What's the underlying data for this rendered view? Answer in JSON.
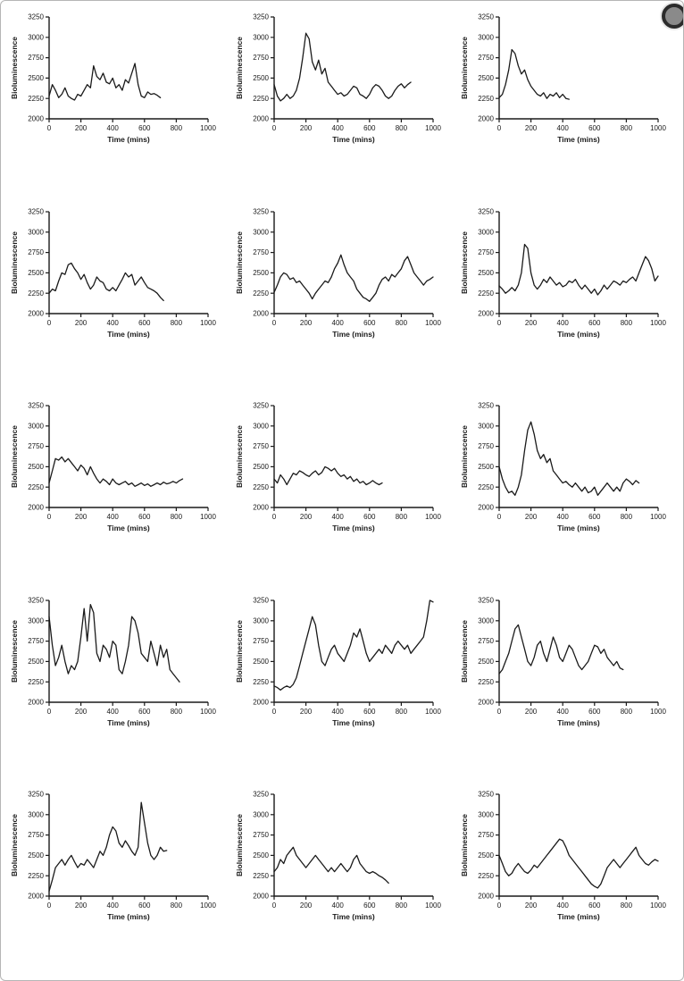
{
  "page": {
    "background": "#ffffff",
    "line_color": "#1a1a1a"
  },
  "chart_data": [
    {
      "type": "line",
      "title": "",
      "xlabel": "Time (mins)",
      "ylabel": "Bioluminescence",
      "xlim": [
        0,
        1000
      ],
      "ylim": [
        2000,
        3250
      ],
      "xticks": [
        0,
        200,
        400,
        600,
        800,
        1000
      ],
      "yticks": [
        2000,
        2250,
        2500,
        2750,
        3000,
        3250
      ],
      "x0": 0,
      "dx": 20,
      "values": [
        2280,
        2420,
        2350,
        2260,
        2300,
        2380,
        2280,
        2250,
        2230,
        2300,
        2280,
        2350,
        2420,
        2380,
        2650,
        2520,
        2480,
        2560,
        2450,
        2430,
        2500,
        2380,
        2420,
        2350,
        2480,
        2440,
        2560,
        2680,
        2420,
        2280,
        2260,
        2330,
        2300,
        2310,
        2290,
        2260
      ]
    },
    {
      "type": "line",
      "title": "",
      "xlabel": "Time (mins)",
      "ylabel": "Bioluminescence",
      "xlim": [
        0,
        1000
      ],
      "ylim": [
        2000,
        3250
      ],
      "xticks": [
        0,
        200,
        400,
        600,
        800,
        1000
      ],
      "yticks": [
        2000,
        2250,
        2500,
        2750,
        3000,
        3250
      ],
      "x0": 0,
      "dx": 20,
      "values": [
        2420,
        2280,
        2220,
        2250,
        2300,
        2250,
        2280,
        2350,
        2500,
        2750,
        3050,
        2980,
        2700,
        2600,
        2720,
        2550,
        2620,
        2450,
        2400,
        2350,
        2300,
        2320,
        2280,
        2300,
        2350,
        2400,
        2380,
        2300,
        2280,
        2250,
        2300,
        2380,
        2420,
        2400,
        2350,
        2280,
        2250,
        2280,
        2350,
        2400,
        2430,
        2380,
        2420,
        2450
      ]
    },
    {
      "type": "line",
      "title": "",
      "xlabel": "Time (mins)",
      "ylabel": "Bioluminescence",
      "xlim": [
        0,
        1000
      ],
      "ylim": [
        2000,
        3250
      ],
      "xticks": [
        0,
        200,
        400,
        600,
        800,
        1000
      ],
      "yticks": [
        2000,
        2250,
        2500,
        2750,
        3000,
        3250
      ],
      "x0": 0,
      "dx": 20,
      "values": [
        2260,
        2300,
        2420,
        2600,
        2850,
        2800,
        2650,
        2550,
        2600,
        2480,
        2400,
        2350,
        2300,
        2280,
        2320,
        2250,
        2300,
        2280,
        2320,
        2260,
        2300,
        2250,
        2240
      ]
    },
    {
      "type": "line",
      "title": "",
      "xlabel": "Time (mins)",
      "ylabel": "Bioluminescence",
      "xlim": [
        0,
        1000
      ],
      "ylim": [
        2000,
        3250
      ],
      "xticks": [
        0,
        200,
        400,
        600,
        800,
        1000
      ],
      "yticks": [
        2000,
        2250,
        2500,
        2750,
        3000,
        3250
      ],
      "x0": 0,
      "dx": 20,
      "values": [
        2250,
        2300,
        2280,
        2400,
        2500,
        2480,
        2600,
        2620,
        2550,
        2500,
        2420,
        2480,
        2380,
        2300,
        2350,
        2450,
        2400,
        2380,
        2300,
        2280,
        2320,
        2280,
        2350,
        2420,
        2500,
        2450,
        2480,
        2350,
        2400,
        2450,
        2380,
        2320,
        2300,
        2280,
        2250,
        2200,
        2160
      ]
    },
    {
      "type": "line",
      "title": "",
      "xlabel": "Time (mins)",
      "ylabel": "Bioluminescence",
      "xlim": [
        0,
        1000
      ],
      "ylim": [
        2000,
        3250
      ],
      "xticks": [
        0,
        200,
        400,
        600,
        800,
        1000
      ],
      "yticks": [
        2000,
        2250,
        2500,
        2750,
        3000,
        3250
      ],
      "x0": 0,
      "dx": 20,
      "values": [
        2260,
        2350,
        2450,
        2500,
        2480,
        2420,
        2440,
        2380,
        2400,
        2350,
        2300,
        2250,
        2180,
        2250,
        2300,
        2350,
        2400,
        2380,
        2450,
        2550,
        2620,
        2720,
        2600,
        2500,
        2450,
        2400,
        2300,
        2250,
        2200,
        2180,
        2150,
        2200,
        2250,
        2350,
        2420,
        2450,
        2400,
        2480,
        2450,
        2500,
        2550,
        2650,
        2700,
        2600,
        2500,
        2450,
        2400,
        2350,
        2400,
        2420,
        2450
      ]
    },
    {
      "type": "line",
      "title": "",
      "xlabel": "Time (mins)",
      "ylabel": "Bioluminescence",
      "xlim": [
        0,
        1000
      ],
      "ylim": [
        2000,
        3250
      ],
      "xticks": [
        0,
        200,
        400,
        600,
        800,
        1000
      ],
      "yticks": [
        2000,
        2250,
        2500,
        2750,
        3000,
        3250
      ],
      "x0": 0,
      "dx": 20,
      "values": [
        2340,
        2300,
        2250,
        2280,
        2320,
        2280,
        2350,
        2500,
        2850,
        2800,
        2500,
        2350,
        2300,
        2350,
        2420,
        2380,
        2450,
        2400,
        2350,
        2380,
        2330,
        2350,
        2400,
        2380,
        2420,
        2350,
        2300,
        2350,
        2300,
        2250,
        2300,
        2230,
        2280,
        2350,
        2300,
        2350,
        2400,
        2380,
        2350,
        2400,
        2380,
        2420,
        2450,
        2400,
        2500,
        2600,
        2700,
        2650,
        2550,
        2400,
        2460
      ]
    },
    {
      "type": "line",
      "title": "",
      "xlabel": "Time (mins)",
      "ylabel": "Bioluminescence",
      "xlim": [
        0,
        1000
      ],
      "ylim": [
        2000,
        3250
      ],
      "xticks": [
        0,
        200,
        400,
        600,
        800,
        1000
      ],
      "yticks": [
        2000,
        2250,
        2500,
        2750,
        3000,
        3250
      ],
      "x0": 0,
      "dx": 20,
      "values": [
        2300,
        2450,
        2600,
        2580,
        2620,
        2560,
        2600,
        2550,
        2500,
        2450,
        2520,
        2480,
        2400,
        2500,
        2420,
        2350,
        2300,
        2350,
        2320,
        2280,
        2350,
        2300,
        2280,
        2300,
        2320,
        2280,
        2300,
        2260,
        2280,
        2300,
        2270,
        2290,
        2260,
        2280,
        2300,
        2280,
        2310,
        2290,
        2300,
        2320,
        2300,
        2330,
        2350
      ]
    },
    {
      "type": "line",
      "title": "",
      "xlabel": "Time (mins)",
      "ylabel": "Bioluminescence",
      "xlim": [
        0,
        1000
      ],
      "ylim": [
        2000,
        3250
      ],
      "xticks": [
        0,
        200,
        400,
        600,
        800,
        1000
      ],
      "yticks": [
        2000,
        2250,
        2500,
        2750,
        3000,
        3250
      ],
      "x0": 0,
      "dx": 20,
      "values": [
        2350,
        2300,
        2400,
        2350,
        2280,
        2350,
        2420,
        2400,
        2450,
        2430,
        2400,
        2380,
        2420,
        2450,
        2400,
        2430,
        2500,
        2480,
        2450,
        2480,
        2420,
        2380,
        2400,
        2350,
        2380,
        2320,
        2350,
        2300,
        2320,
        2280,
        2300,
        2330,
        2300,
        2280,
        2300
      ]
    },
    {
      "type": "line",
      "title": "",
      "xlabel": "Time (mins)",
      "ylabel": "Bioluminescence",
      "xlim": [
        0,
        1000
      ],
      "ylim": [
        2000,
        3250
      ],
      "xticks": [
        0,
        200,
        400,
        600,
        800,
        1000
      ],
      "yticks": [
        2000,
        2250,
        2500,
        2750,
        3000,
        3250
      ],
      "x0": 0,
      "dx": 20,
      "values": [
        2500,
        2350,
        2250,
        2180,
        2200,
        2150,
        2250,
        2400,
        2700,
        2950,
        3050,
        2900,
        2700,
        2600,
        2650,
        2550,
        2600,
        2450,
        2400,
        2350,
        2300,
        2320,
        2280,
        2250,
        2300,
        2250,
        2200,
        2250,
        2180,
        2200,
        2250,
        2150,
        2200,
        2250,
        2300,
        2250,
        2200,
        2250,
        2200,
        2300,
        2350,
        2320,
        2280,
        2330,
        2300
      ]
    },
    {
      "type": "line",
      "title": "",
      "xlabel": "Time (mins)",
      "ylabel": "Bioluminescence",
      "xlim": [
        0,
        1000
      ],
      "ylim": [
        2000,
        3250
      ],
      "xticks": [
        0,
        200,
        400,
        600,
        800,
        1000
      ],
      "yticks": [
        2000,
        2250,
        2500,
        2750,
        3000,
        3250
      ],
      "x0": 0,
      "dx": 20,
      "values": [
        3050,
        2700,
        2450,
        2550,
        2700,
        2500,
        2350,
        2450,
        2400,
        2500,
        2800,
        3150,
        2750,
        3200,
        3100,
        2600,
        2500,
        2700,
        2650,
        2550,
        2750,
        2700,
        2400,
        2350,
        2500,
        2700,
        3050,
        3000,
        2850,
        2600,
        2550,
        2500,
        2750,
        2600,
        2450,
        2700,
        2550,
        2650,
        2400,
        2350,
        2300,
        2250
      ]
    },
    {
      "type": "line",
      "title": "",
      "xlabel": "Time (mins)",
      "ylabel": "Bioluminescence",
      "xlim": [
        0,
        1000
      ],
      "ylim": [
        2000,
        3250
      ],
      "xticks": [
        0,
        200,
        400,
        600,
        800,
        1000
      ],
      "yticks": [
        2000,
        2250,
        2500,
        2750,
        3000,
        3250
      ],
      "x0": 0,
      "dx": 20,
      "values": [
        2200,
        2180,
        2150,
        2180,
        2200,
        2180,
        2220,
        2300,
        2450,
        2600,
        2750,
        2900,
        3050,
        2950,
        2700,
        2500,
        2450,
        2550,
        2650,
        2700,
        2600,
        2550,
        2500,
        2600,
        2700,
        2850,
        2800,
        2900,
        2750,
        2600,
        2500,
        2550,
        2600,
        2650,
        2600,
        2700,
        2650,
        2600,
        2700,
        2750,
        2700,
        2650,
        2700,
        2600,
        2650,
        2700,
        2750,
        2800,
        3000,
        3250,
        3230
      ]
    },
    {
      "type": "line",
      "title": "",
      "xlabel": "Time (mins)",
      "ylabel": "Bioluminescence",
      "xlim": [
        0,
        1000
      ],
      "ylim": [
        2000,
        3250
      ],
      "xticks": [
        0,
        200,
        400,
        600,
        800,
        1000
      ],
      "yticks": [
        2000,
        2250,
        2500,
        2750,
        3000,
        3250
      ],
      "x0": 0,
      "dx": 20,
      "values": [
        2350,
        2400,
        2500,
        2600,
        2750,
        2900,
        2950,
        2800,
        2650,
        2500,
        2450,
        2550,
        2700,
        2750,
        2600,
        2500,
        2650,
        2800,
        2700,
        2550,
        2500,
        2600,
        2700,
        2650,
        2550,
        2450,
        2400,
        2450,
        2500,
        2600,
        2700,
        2680,
        2600,
        2650,
        2550,
        2500,
        2450,
        2500,
        2420,
        2400
      ]
    },
    {
      "type": "line",
      "title": "",
      "xlabel": "Time (mins)",
      "ylabel": "Bioluminescence",
      "xlim": [
        0,
        1000
      ],
      "ylim": [
        2000,
        3250
      ],
      "xticks": [
        0,
        200,
        400,
        600,
        800,
        1000
      ],
      "yticks": [
        2000,
        2250,
        2500,
        2750,
        3000,
        3250
      ],
      "x0": 0,
      "dx": 20,
      "values": [
        2060,
        2200,
        2350,
        2400,
        2450,
        2380,
        2450,
        2500,
        2420,
        2350,
        2400,
        2380,
        2450,
        2400,
        2350,
        2450,
        2550,
        2500,
        2600,
        2750,
        2850,
        2800,
        2650,
        2600,
        2680,
        2620,
        2550,
        2500,
        2600,
        3150,
        2900,
        2650,
        2500,
        2450,
        2500,
        2600,
        2550,
        2560
      ]
    },
    {
      "type": "line",
      "title": "",
      "xlabel": "Time (mins)",
      "ylabel": "Bioluminescence",
      "xlim": [
        0,
        1000
      ],
      "ylim": [
        2000,
        3250
      ],
      "xticks": [
        0,
        200,
        400,
        600,
        800,
        1000
      ],
      "yticks": [
        2000,
        2250,
        2500,
        2750,
        3000,
        3250
      ],
      "x0": 0,
      "dx": 20,
      "values": [
        2300,
        2350,
        2450,
        2400,
        2500,
        2550,
        2600,
        2500,
        2450,
        2400,
        2350,
        2400,
        2450,
        2500,
        2450,
        2400,
        2350,
        2300,
        2350,
        2300,
        2350,
        2400,
        2350,
        2300,
        2350,
        2450,
        2500,
        2400,
        2350,
        2300,
        2280,
        2300,
        2280,
        2250,
        2230,
        2200,
        2160
      ]
    },
    {
      "type": "line",
      "title": "",
      "xlabel": "Time (mins)",
      "ylabel": "Bioluminescence",
      "xlim": [
        0,
        1000
      ],
      "ylim": [
        2000,
        3250
      ],
      "xticks": [
        0,
        200,
        400,
        600,
        800,
        1000
      ],
      "yticks": [
        2000,
        2250,
        2500,
        2750,
        3000,
        3250
      ],
      "x0": 0,
      "dx": 20,
      "values": [
        2500,
        2400,
        2300,
        2250,
        2280,
        2350,
        2400,
        2350,
        2300,
        2280,
        2320,
        2380,
        2350,
        2400,
        2450,
        2500,
        2550,
        2600,
        2650,
        2700,
        2680,
        2600,
        2500,
        2450,
        2400,
        2350,
        2300,
        2250,
        2200,
        2150,
        2120,
        2100,
        2150,
        2250,
        2350,
        2400,
        2450,
        2400,
        2350,
        2400,
        2450,
        2500,
        2550,
        2600,
        2500,
        2450,
        2400,
        2380,
        2420,
        2450,
        2430
      ]
    }
  ]
}
